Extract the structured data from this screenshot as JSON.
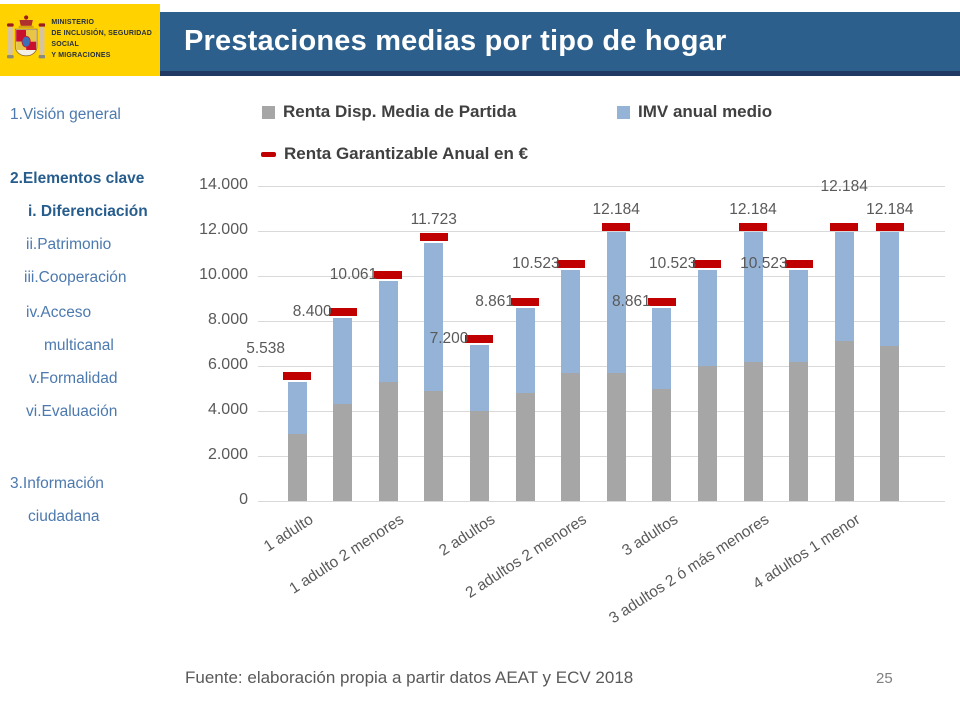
{
  "header": {
    "ministry_lines": [
      "MINISTERIO",
      "DE INCLUSIÓN, SEGURIDAD SOCIAL",
      "Y MIGRACIONES"
    ],
    "title": "Prestaciones medias por tipo de hogar"
  },
  "colors": {
    "header_band": "#2C5F8C",
    "header_band_dark": "#1F3864",
    "logo_yellow": "#FFD200",
    "bar_gray": "#A6A6A6",
    "bar_blue": "#95B3D7",
    "marker_red": "#C00000",
    "chart_text": "#595959",
    "sidebar_regular": "#4C79AE",
    "sidebar_emphasis": "#265D8D"
  },
  "sidebar": {
    "items": [
      {
        "id": "vision-general",
        "label_lines": [
          "1.Visión general"
        ],
        "emphasis": false
      },
      {
        "id": "elementos-clave",
        "label_lines": [
          "2.Elementos clave"
        ],
        "emphasis": true
      },
      {
        "id": "diferenciacion",
        "label_lines": [
          "i. Diferenciación"
        ],
        "emphasis": true
      },
      {
        "id": "patrimonio",
        "label_lines": [
          "ii.Patrimonio"
        ],
        "emphasis": false
      },
      {
        "id": "cooperacion",
        "label_lines": [
          "iii.Cooperación"
        ],
        "emphasis": false
      },
      {
        "id": "acceso-multicanal",
        "label_lines": [
          "iv.Acceso",
          "multicanal"
        ],
        "emphasis": false
      },
      {
        "id": "formalidad",
        "label_lines": [
          "v.Formalidad"
        ],
        "emphasis": false
      },
      {
        "id": "evaluacion",
        "label_lines": [
          "vi.Evaluación"
        ],
        "emphasis": false
      },
      {
        "id": "informacion-ciudadana",
        "label_lines": [
          "3.Información",
          "ciudadana"
        ],
        "emphasis": false
      }
    ]
  },
  "chart_data": {
    "type": "bar",
    "stacked": true,
    "grid": true,
    "legend_position": "top",
    "ylim": [
      0,
      14000
    ],
    "y_tick_values": [
      0,
      2000,
      4000,
      6000,
      8000,
      10000,
      12000,
      14000
    ],
    "y_tick_labels": [
      "0",
      "2.000",
      "4.000",
      "6.000",
      "8.000",
      "10.000",
      "12.000",
      "14.000"
    ],
    "num_bars": 14,
    "x_tick_labels": [
      "1 adulto",
      "1 adulto 2 menores",
      "2 adultos",
      "2 adultos 2 menores",
      "3 adultos",
      "3 adultos 2 ó más menores",
      "4 adultos 1 menor"
    ],
    "x_tick_bar_indices": [
      0,
      2,
      4,
      6,
      8,
      10,
      12
    ],
    "series": [
      {
        "name": "Renta Disp. Media de Partida",
        "color": "#A6A6A6",
        "role": "stack-base",
        "values_estimated": [
          3000,
          4300,
          5300,
          4900,
          4000,
          4800,
          5700,
          5700,
          5000,
          6000,
          6200,
          6200,
          7100,
          6900
        ]
      },
      {
        "name": "IMV anual medio",
        "color": "#95B3D7",
        "role": "stack-top",
        "values_estimated": [
          2300,
          3850,
          4500,
          6550,
          2950,
          3800,
          4550,
          6250,
          3600,
          4250,
          5750,
          4050,
          4850,
          5050
        ]
      },
      {
        "name": "Renta Garantizable  Anual en €",
        "color": "#C00000",
        "role": "dash-marker",
        "values": [
          5538,
          8400,
          10061,
          11723,
          7200,
          8861,
          10523,
          12184,
          8861,
          10523,
          12184,
          10523,
          12184,
          12184
        ],
        "labels": [
          "5.538",
          "8.400",
          "10.061",
          "11.723",
          "7.200",
          "8.861",
          "10.523",
          "12.184",
          "8.861",
          "10.523",
          "12.184",
          "10.523",
          "12.184",
          "12.184"
        ]
      }
    ],
    "data_label_placement": [
      "left-high",
      "left",
      "left",
      "above",
      "left",
      "left",
      "left",
      "above",
      "left",
      "left",
      "above",
      "left",
      "above-high",
      "above"
    ]
  },
  "footer": {
    "source": "Fuente: elaboración propia a partir datos AEAT y ECV 2018",
    "page_number": "25"
  }
}
